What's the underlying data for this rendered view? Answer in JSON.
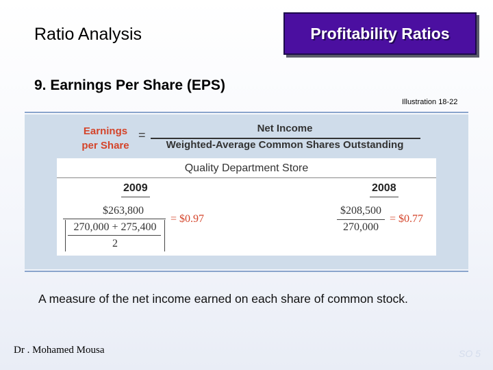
{
  "header": {
    "title": "Ratio Analysis",
    "badge": "Profitability Ratios"
  },
  "section_title": "9. Earnings Per Share (EPS)",
  "illustration_ref": "Illustration 18-22",
  "formula": {
    "left_label_line1": "Earnings",
    "left_label_line2": "per Share",
    "equals": "=",
    "numerator": "Net Income",
    "denominator": "Weighted-Average Common Shares Outstanding"
  },
  "example": {
    "company": "Quality Department Store",
    "year_2009": {
      "year": "2009",
      "numerator": "$263,800",
      "denominator_top": "270,000 + 275,400",
      "denominator_bottom": "2",
      "result": "= $0.97"
    },
    "year_2008": {
      "year": "2008",
      "numerator": "$208,500",
      "denominator": "270,000",
      "result": "= $0.77"
    }
  },
  "description": "A measure of the net income earned on each share of common stock.",
  "footer": {
    "author": "Dr . Mohamed Mousa",
    "slide_ref": "SO 5"
  },
  "colors": {
    "badge_bg": "#4b0fa0",
    "accent_red": "#d4442a",
    "panel_bg": "#cfdcea",
    "rule": "#8aa4cc"
  }
}
